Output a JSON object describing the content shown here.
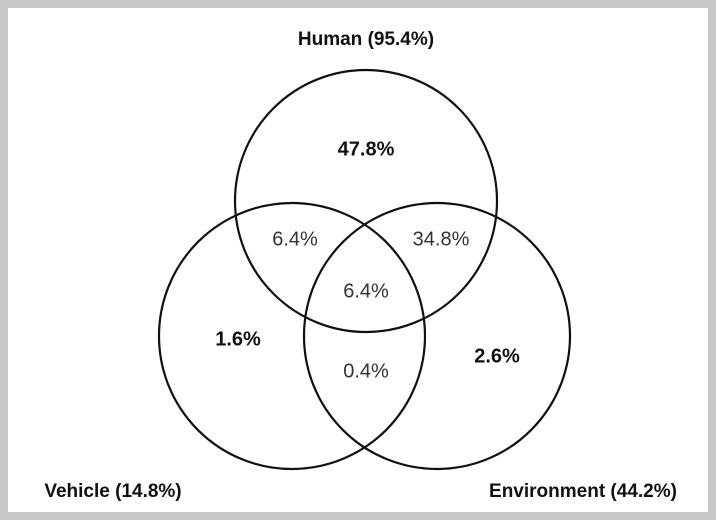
{
  "sets": [
    {
      "label": "Human (95.4%)"
    },
    {
      "label": "Vehicle (14.8%)"
    },
    {
      "label": "Environment (44.2%)"
    }
  ],
  "regions": [
    {
      "label": "47.8%"
    },
    {
      "label": "6.4%"
    },
    {
      "label": "34.8%"
    },
    {
      "label": "6.4%"
    },
    {
      "label": "1.6%"
    },
    {
      "label": "0.4%"
    },
    {
      "label": "2.6%"
    }
  ]
}
